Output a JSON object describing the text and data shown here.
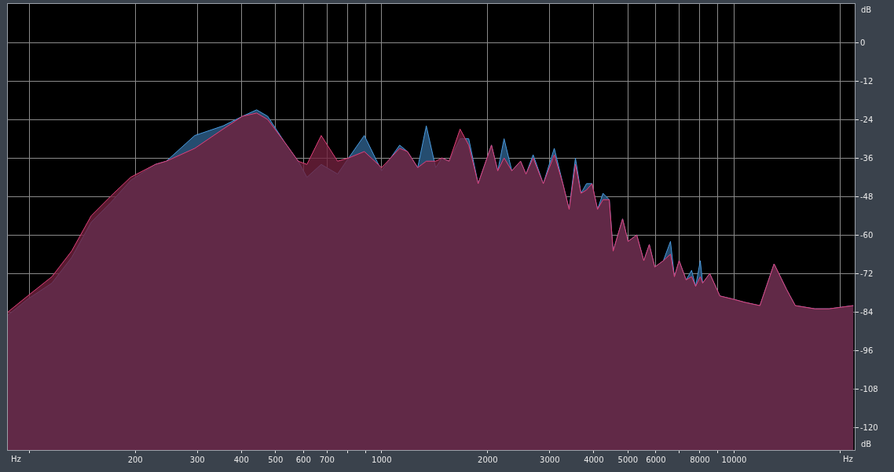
{
  "chart_data": {
    "type": "area",
    "xlabel": "Hz",
    "ylabel": "dB",
    "annotations": [
      "Hz",
      "dB"
    ],
    "log": "x",
    "grid": true,
    "marker": "none",
    "line_style": "solid",
    "xlim": [
      87,
      22000
    ],
    "ylim": [
      -127,
      12
    ],
    "xticks": [
      {
        "value": 100,
        "label": null
      },
      200,
      300,
      400,
      500,
      600,
      700,
      {
        "value": 800,
        "label": null
      },
      {
        "value": 900,
        "label": null
      },
      1000,
      2000,
      3000,
      4000,
      5000,
      6000,
      {
        "value": 7000,
        "label": null
      },
      8000,
      {
        "value": 9000,
        "label": null
      },
      10000,
      {
        "value": 20000,
        "label": null
      }
    ],
    "yticks": [
      0,
      -12,
      -24,
      -36,
      -48,
      -60,
      -72,
      -84,
      -96,
      -108,
      -120
    ],
    "x": [
      87,
      99,
      116,
      132,
      150,
      170,
      194,
      228,
      245,
      295,
      355,
      403,
      442,
      475,
      530,
      580,
      614,
      674,
      750,
      806,
      893,
      1000,
      1125,
      1184,
      1266,
      1339,
      1424,
      1484,
      1554,
      1670,
      1767,
      1879,
      2050,
      2136,
      2226,
      2342,
      2479,
      2569,
      2691,
      2876,
      3090,
      3268,
      3405,
      3548,
      3679,
      3814,
      3954,
      4099,
      4248,
      4426,
      4539,
      4828,
      5005,
      5295,
      5546,
      5748,
      5958,
      6303,
      6602,
      6773,
      6985,
      7312,
      7579,
      7780,
      8022,
      8146,
      8531,
      9118,
      9949,
      10745,
      11843,
      12990,
      14100,
      14920,
      16960,
      18600,
      21800
    ],
    "series": [
      {
        "color": "#4a9be0",
        "values": [
          -85,
          -80,
          -75,
          -67,
          -56,
          -50,
          -43,
          -38,
          -37,
          -29,
          -26,
          -23,
          -21,
          -23,
          -31,
          -37,
          -42,
          -38,
          -41,
          -36,
          -29,
          -40,
          -32,
          -34,
          -39,
          -26,
          -39,
          -36,
          -37,
          -30,
          -30,
          -44,
          -32,
          -40,
          -30,
          -40,
          -37,
          -41,
          -35,
          -44,
          -33,
          -44,
          -52,
          -36,
          -47,
          -44,
          -44,
          -52,
          -47,
          -49,
          -65,
          -55,
          -62,
          -60,
          -68,
          -63,
          -70,
          -68,
          -62,
          -73,
          -68,
          -74,
          -71,
          -76,
          -68,
          -75,
          -72,
          -79,
          -80,
          -81,
          -82,
          -69,
          -77,
          -82,
          -83,
          -83,
          -82
        ]
      },
      {
        "color": "#e0407a",
        "values": [
          -84,
          -79,
          -73,
          -65,
          -54,
          -48,
          -42,
          -38,
          -37,
          -33,
          -27,
          -23,
          -22,
          -24,
          -31,
          -37,
          -38,
          -29,
          -37,
          -36,
          -34,
          -39,
          -33,
          -34,
          -39,
          -37,
          -37,
          -36,
          -37,
          -27,
          -32,
          -44,
          -32,
          -40,
          -36,
          -40,
          -37,
          -41,
          -36,
          -44,
          -35,
          -44,
          -52,
          -38,
          -47,
          -46,
          -44,
          -52,
          -49,
          -49,
          -65,
          -55,
          -62,
          -60,
          -68,
          -63,
          -70,
          -68,
          -66,
          -73,
          -68,
          -74,
          -73,
          -76,
          -73,
          -75,
          -72,
          -79,
          -80,
          -81,
          -82,
          -69,
          -77,
          -82,
          -83,
          -83,
          -82
        ]
      }
    ]
  }
}
